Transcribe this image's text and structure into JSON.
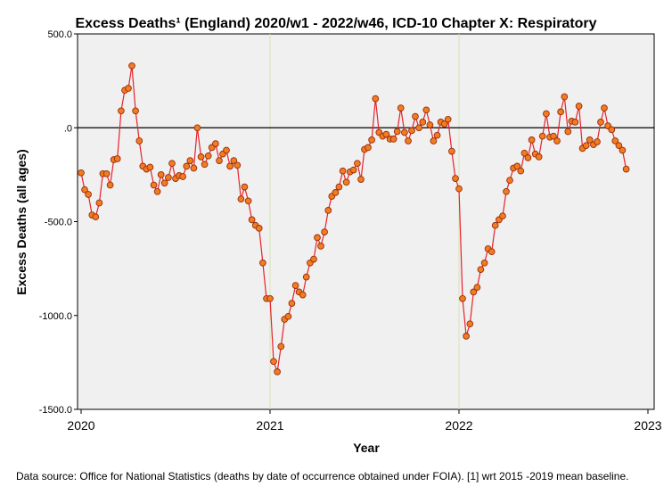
{
  "chart_data": {
    "type": "line",
    "title": "Excess Deaths¹ (England) 2020/w1 - 2022/w46, ICD-10 Chapter X: Respiratory",
    "xlabel": "Year",
    "ylabel": "Excess Deaths (all ages)",
    "ylim": [
      -1500,
      500
    ],
    "xlim": [
      2020,
      2023
    ],
    "yticks": [
      "500.0",
      ".0",
      "-500.0",
      "-1000.0",
      "-1500.0"
    ],
    "xticks": [
      "2020",
      "2021",
      "2022",
      "2023"
    ],
    "reference_line": 0,
    "grid": true,
    "colors": {
      "line": "#e8222b",
      "marker_fill": "#f07d1e",
      "marker_edge": "#9a2a10",
      "plot_bg": "#f0f0f0",
      "grid": "#d8e3b8"
    },
    "series": [
      {
        "points": [
          [
            2020.0,
            -240
          ],
          [
            2020.019,
            -330
          ],
          [
            2020.038,
            -355
          ],
          [
            2020.058,
            -465
          ],
          [
            2020.077,
            -475
          ],
          [
            2020.096,
            -400
          ],
          [
            2020.115,
            -245
          ],
          [
            2020.135,
            -245
          ],
          [
            2020.154,
            -305
          ],
          [
            2020.173,
            -170
          ],
          [
            2020.192,
            -165
          ],
          [
            2020.212,
            90
          ],
          [
            2020.231,
            200
          ],
          [
            2020.25,
            210
          ],
          [
            2020.269,
            330
          ],
          [
            2020.288,
            90
          ],
          [
            2020.308,
            -70
          ],
          [
            2020.327,
            -205
          ],
          [
            2020.346,
            -220
          ],
          [
            2020.365,
            -210
          ],
          [
            2020.385,
            -305
          ],
          [
            2020.404,
            -340
          ],
          [
            2020.423,
            -250
          ],
          [
            2020.442,
            -295
          ],
          [
            2020.462,
            -265
          ],
          [
            2020.481,
            -190
          ],
          [
            2020.5,
            -270
          ],
          [
            2020.519,
            -255
          ],
          [
            2020.538,
            -260
          ],
          [
            2020.558,
            -205
          ],
          [
            2020.577,
            -175
          ],
          [
            2020.596,
            -215
          ],
          [
            2020.615,
            0
          ],
          [
            2020.635,
            -155
          ],
          [
            2020.654,
            -195
          ],
          [
            2020.673,
            -150
          ],
          [
            2020.692,
            -105
          ],
          [
            2020.712,
            -85
          ],
          [
            2020.731,
            -175
          ],
          [
            2020.75,
            -140
          ],
          [
            2020.769,
            -120
          ],
          [
            2020.788,
            -205
          ],
          [
            2020.808,
            -175
          ],
          [
            2020.827,
            -200
          ],
          [
            2020.846,
            -380
          ],
          [
            2020.865,
            -315
          ],
          [
            2020.885,
            -390
          ],
          [
            2020.904,
            -490
          ],
          [
            2020.923,
            -520
          ],
          [
            2020.942,
            -535
          ],
          [
            2020.962,
            -720
          ],
          [
            2020.981,
            -910
          ],
          [
            2021.0,
            -910
          ],
          [
            2021.019,
            -1245
          ],
          [
            2021.038,
            -1300
          ],
          [
            2021.058,
            -1165
          ],
          [
            2021.077,
            -1020
          ],
          [
            2021.096,
            -1005
          ],
          [
            2021.115,
            -935
          ],
          [
            2021.135,
            -840
          ],
          [
            2021.154,
            -875
          ],
          [
            2021.173,
            -890
          ],
          [
            2021.192,
            -795
          ],
          [
            2021.212,
            -720
          ],
          [
            2021.231,
            -700
          ],
          [
            2021.25,
            -585
          ],
          [
            2021.269,
            -630
          ],
          [
            2021.288,
            -555
          ],
          [
            2021.308,
            -440
          ],
          [
            2021.327,
            -365
          ],
          [
            2021.346,
            -345
          ],
          [
            2021.365,
            -315
          ],
          [
            2021.385,
            -230
          ],
          [
            2021.404,
            -290
          ],
          [
            2021.423,
            -235
          ],
          [
            2021.442,
            -225
          ],
          [
            2021.462,
            -190
          ],
          [
            2021.481,
            -275
          ],
          [
            2021.5,
            -115
          ],
          [
            2021.519,
            -105
          ],
          [
            2021.538,
            -65
          ],
          [
            2021.558,
            155
          ],
          [
            2021.577,
            -25
          ],
          [
            2021.596,
            -45
          ],
          [
            2021.615,
            -35
          ],
          [
            2021.635,
            -60
          ],
          [
            2021.654,
            -60
          ],
          [
            2021.673,
            -20
          ],
          [
            2021.692,
            105
          ],
          [
            2021.712,
            -25
          ],
          [
            2021.731,
            -70
          ],
          [
            2021.75,
            -15
          ],
          [
            2021.769,
            60
          ],
          [
            2021.788,
            0
          ],
          [
            2021.808,
            30
          ],
          [
            2021.827,
            95
          ],
          [
            2021.846,
            15
          ],
          [
            2021.865,
            -70
          ],
          [
            2021.885,
            -40
          ],
          [
            2021.904,
            30
          ],
          [
            2021.923,
            20
          ],
          [
            2021.942,
            45
          ],
          [
            2021.962,
            -125
          ],
          [
            2021.981,
            -270
          ],
          [
            2022.0,
            -325
          ],
          [
            2022.019,
            -910
          ],
          [
            2022.038,
            -1110
          ],
          [
            2022.058,
            -1045
          ],
          [
            2022.077,
            -875
          ],
          [
            2022.096,
            -850
          ],
          [
            2022.115,
            -755
          ],
          [
            2022.135,
            -720
          ],
          [
            2022.154,
            -645
          ],
          [
            2022.173,
            -660
          ],
          [
            2022.192,
            -520
          ],
          [
            2022.212,
            -490
          ],
          [
            2022.231,
            -470
          ],
          [
            2022.25,
            -340
          ],
          [
            2022.269,
            -280
          ],
          [
            2022.288,
            -215
          ],
          [
            2022.308,
            -205
          ],
          [
            2022.327,
            -230
          ],
          [
            2022.346,
            -135
          ],
          [
            2022.365,
            -160
          ],
          [
            2022.385,
            -65
          ],
          [
            2022.404,
            -140
          ],
          [
            2022.423,
            -155
          ],
          [
            2022.442,
            -45
          ],
          [
            2022.462,
            75
          ],
          [
            2022.481,
            -50
          ],
          [
            2022.5,
            -45
          ],
          [
            2022.519,
            -70
          ],
          [
            2022.538,
            85
          ],
          [
            2022.558,
            165
          ],
          [
            2022.577,
            -20
          ],
          [
            2022.596,
            35
          ],
          [
            2022.615,
            30
          ],
          [
            2022.635,
            115
          ],
          [
            2022.654,
            -110
          ],
          [
            2022.673,
            -95
          ],
          [
            2022.692,
            -65
          ],
          [
            2022.712,
            -90
          ],
          [
            2022.731,
            -75
          ],
          [
            2022.75,
            30
          ],
          [
            2022.769,
            105
          ],
          [
            2022.788,
            10
          ],
          [
            2022.808,
            -10
          ],
          [
            2022.827,
            -70
          ],
          [
            2022.846,
            -95
          ],
          [
            2022.865,
            -120
          ],
          [
            2022.885,
            -220
          ]
        ]
      }
    ]
  },
  "footnote": "Data source: Office for National Statistics (deaths by date of occurrence obtained under FOIA). [1] wrt 2015 -2019 mean baseline."
}
